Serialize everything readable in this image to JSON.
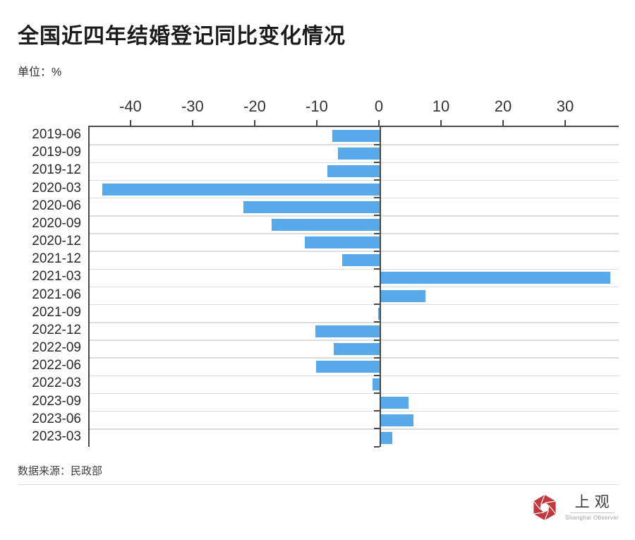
{
  "header": {
    "title": "全国近四年结婚登记同比变化情况",
    "unit_label": "单位：%"
  },
  "chart_data": {
    "type": "bar",
    "orientation": "horizontal",
    "title": "全国近四年结婚登记同比变化情况",
    "unit": "%",
    "categories": [
      "2019-06",
      "2019-09",
      "2019-12",
      "2020-03",
      "2020-06",
      "2020-09",
      "2020-12",
      "2021-12",
      "2021-03",
      "2021-06",
      "2021-09",
      "2022-12",
      "2022-09",
      "2022-06",
      "2022-03",
      "2023-09",
      "2023-06",
      "2023-03"
    ],
    "values": [
      -7.7,
      -6.8,
      -8.5,
      -44.7,
      -22.0,
      -17.5,
      -12.2,
      -6.1,
      37.0,
      7.3,
      -0.3,
      -10.5,
      -7.5,
      -10.3,
      -1.2,
      4.5,
      5.3,
      1.9
    ],
    "xlim": [
      -46.8,
      38.4
    ],
    "xticks": [
      -40,
      -30,
      -20,
      -10,
      0,
      10,
      20,
      30
    ],
    "grid": true,
    "bar_color": "#58A9EA",
    "axis_color": "#4a4a4a",
    "grid_color": "#dcdcdc"
  },
  "footer": {
    "source": "数据来源：民政部"
  },
  "logo": {
    "cn": "上观",
    "en": "Shanghai Observer",
    "red": "#C2383E"
  }
}
